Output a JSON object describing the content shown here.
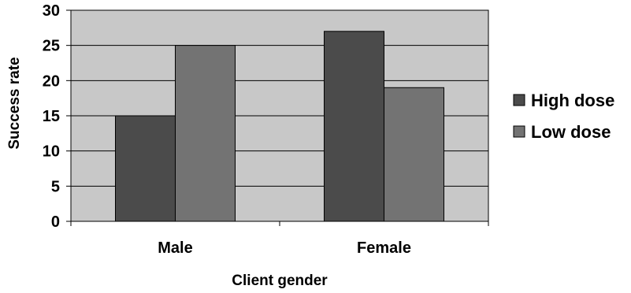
{
  "chart_data": {
    "type": "bar",
    "categories": [
      "Male",
      "Female"
    ],
    "series": [
      {
        "name": "High dose",
        "values": [
          15,
          27
        ],
        "color": "#4b4b4b"
      },
      {
        "name": "Low dose",
        "values": [
          25,
          19
        ],
        "color": "#737373"
      }
    ],
    "xlabel": "Client gender",
    "ylabel": "Success rate",
    "ylim": [
      0,
      30
    ],
    "yticks": [
      0,
      5,
      10,
      15,
      20,
      25,
      30
    ],
    "grid": true,
    "legend_position": "right",
    "plot_background": "#c8c8c8"
  }
}
